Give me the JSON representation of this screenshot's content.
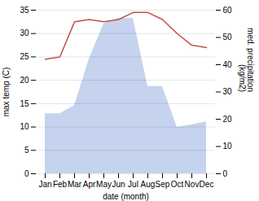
{
  "chart_data": {
    "type": "line",
    "categories": [
      "Jan",
      "Feb",
      "Mar",
      "Apr",
      "May",
      "Jun",
      "Jul",
      "Aug",
      "Sep",
      "Oct",
      "Nov",
      "Dec"
    ],
    "xlabel": "date (month)",
    "ylabel": "max temp (C)",
    "y2label": "med. precipitation\n(kg/m2)",
    "series": [
      {
        "type": "area",
        "axis": "y2",
        "color": "#c5d3ee",
        "values": [
          22,
          22,
          25,
          42,
          55,
          57,
          57,
          32,
          32,
          17,
          18,
          19
        ]
      },
      {
        "type": "line",
        "color": "#c0504d",
        "values": [
          24.5,
          25.0,
          32.5,
          33.0,
          32.5,
          33.0,
          34.5,
          34.5,
          33.0,
          30.0,
          27.5,
          27.0
        ]
      }
    ],
    "ylim": [
      0,
      35
    ],
    "yticks": [
      0,
      5,
      10,
      15,
      20,
      25,
      30,
      35
    ],
    "y2lim": [
      0,
      60
    ],
    "y2ticks": [
      0,
      10,
      20,
      30,
      40,
      50,
      60
    ],
    "grid": true
  }
}
